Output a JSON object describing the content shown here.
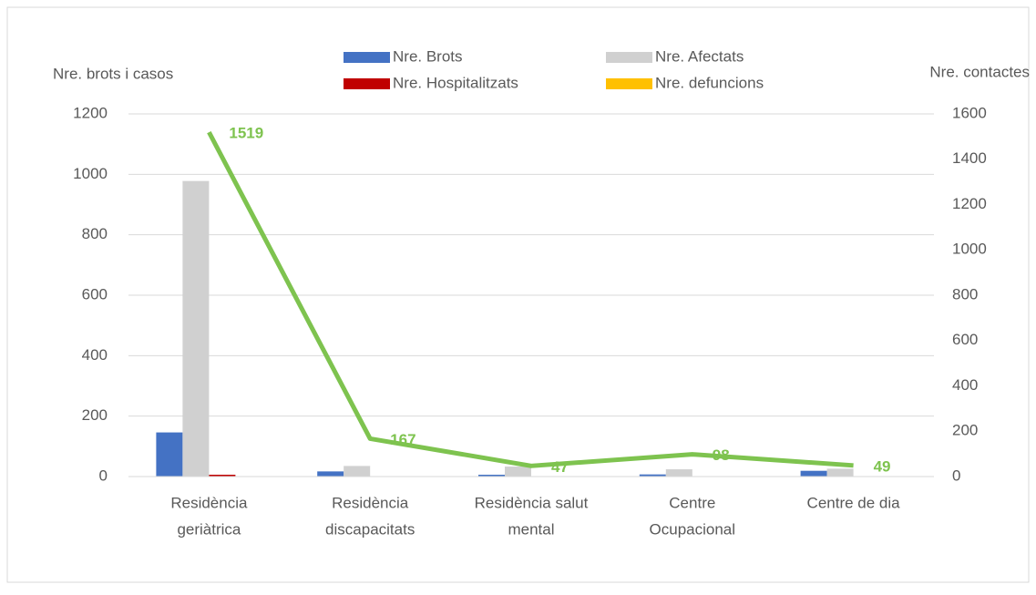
{
  "chart_data": {
    "type": "bar",
    "y_label": "Nre. brots i casos",
    "y2_label": "Nre. contactes",
    "categories": [
      [
        "Residència",
        "geriàtrica"
      ],
      [
        "Residència",
        "discapacitats"
      ],
      [
        "Residència salut",
        "mental"
      ],
      [
        "Centre",
        "Ocupacional"
      ],
      [
        "Centre de dia"
      ]
    ],
    "series": [
      {
        "name": "Nre. Brots",
        "color": "#4472c4",
        "values": [
          146,
          17,
          6,
          7,
          19
        ]
      },
      {
        "name": "Nre. Afectats",
        "color": "#d0d0d0",
        "values": [
          978,
          35,
          33,
          24,
          26
        ]
      },
      {
        "name": "Nre. Hospitalitzats",
        "color": "#c00000",
        "values": [
          6,
          0,
          0,
          0,
          0
        ]
      },
      {
        "name": "Nre. defuncions",
        "color": "#ffc000",
        "values": [
          0,
          0,
          0,
          0,
          0
        ]
      },
      {
        "type": "line",
        "axis": "y2",
        "color": "#7ec34f",
        "values": [
          1519,
          167,
          47,
          98,
          49
        ]
      }
    ],
    "ylim": [
      0,
      1200
    ],
    "yticks": [
      0,
      200,
      400,
      600,
      800,
      1000,
      1200
    ],
    "y2lim": [
      0,
      1600
    ],
    "y2ticks": [
      0,
      200,
      400,
      600,
      800,
      1000,
      1200,
      1400,
      1600
    ],
    "grid": true
  }
}
